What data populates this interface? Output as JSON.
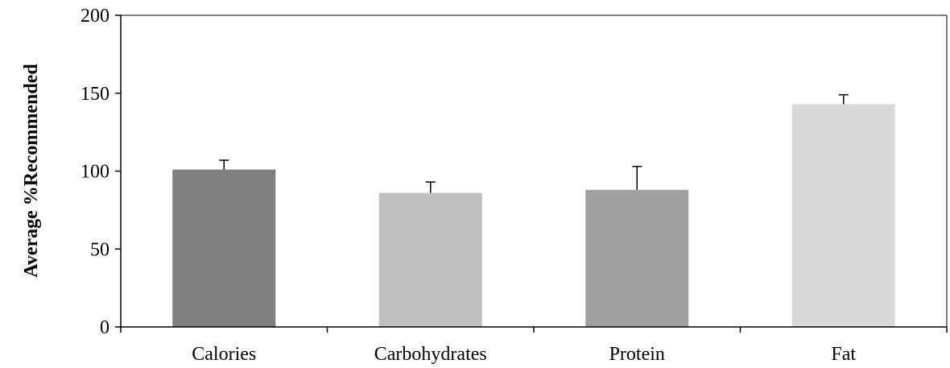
{
  "chart_data": {
    "type": "bar",
    "title": "",
    "xlabel": "",
    "ylabel": "Average %Recommended",
    "ylim": [
      0,
      200
    ],
    "yticks": [
      0,
      50,
      100,
      150,
      200
    ],
    "categories": [
      "Calories",
      "Carbohydrates",
      "Protein",
      "Fat"
    ],
    "values": [
      101,
      86,
      88,
      143
    ],
    "error_bars": [
      6,
      7,
      15,
      6
    ],
    "bar_colors": [
      "#808080",
      "#c0c0c0",
      "#a0a0a0",
      "#d9d9d9"
    ],
    "grid": false,
    "legend": "none"
  }
}
